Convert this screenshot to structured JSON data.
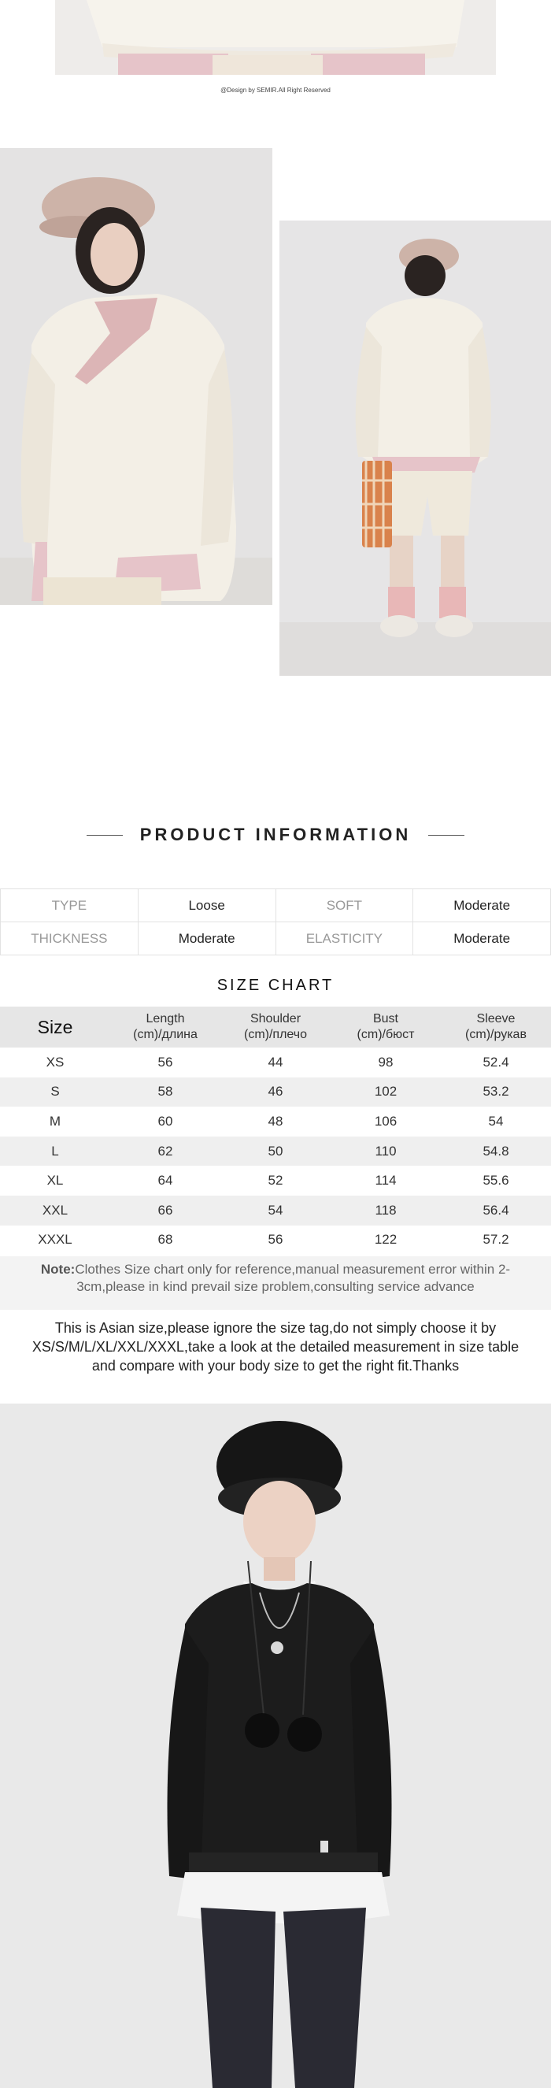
{
  "copyright": "@Design by SEMIR.All Right Reserved",
  "section_title": "PRODUCT INFORMATION",
  "product_info": {
    "rows": [
      {
        "label1": "TYPE",
        "value1": "Loose",
        "label2": "SOFT",
        "value2": "Moderate"
      },
      {
        "label1": "THICKNESS",
        "value1": "Moderate",
        "label2": "ELASTICITY",
        "value2": "Moderate"
      }
    ]
  },
  "size_chart": {
    "title": "SIZE CHART",
    "headers": {
      "size": "Size",
      "length_1": "Length",
      "length_2": "(cm)/длина",
      "shoulder_1": "Shoulder",
      "shoulder_2": "(cm)/плечо",
      "bust_1": "Bust",
      "bust_2": "(cm)/бюст",
      "sleeve_1": "Sleeve",
      "sleeve_2": "(cm)/рукав"
    },
    "rows": [
      {
        "size": "XS",
        "length": "56",
        "shoulder": "44",
        "bust": "98",
        "sleeve": "52.4"
      },
      {
        "size": "S",
        "length": "58",
        "shoulder": "46",
        "bust": "102",
        "sleeve": "53.2"
      },
      {
        "size": "M",
        "length": "60",
        "shoulder": "48",
        "bust": "106",
        "sleeve": "54"
      },
      {
        "size": "L",
        "length": "62",
        "shoulder": "50",
        "bust": "110",
        "sleeve": "54.8"
      },
      {
        "size": "XL",
        "length": "64",
        "shoulder": "52",
        "bust": "114",
        "sleeve": "55.6"
      },
      {
        "size": "XXL",
        "length": "66",
        "shoulder": "54",
        "bust": "118",
        "sleeve": "56.4"
      },
      {
        "size": "XXXL",
        "length": "68",
        "shoulder": "56",
        "bust": "122",
        "sleeve": "57.2"
      }
    ]
  },
  "note": {
    "prefix": "Note:",
    "text": "Clothes Size chart only for reference,manual measurement error within 2-3cm,please in kind prevail size problem,consulting service advance"
  },
  "notice": "This is Asian size,please ignore the size tag,do not simply choose it by XS/S/M/L/XL/XXL/XXXL,take a look at the detailed measurement in size table and compare with your body size to get the right fit.Thanks",
  "colors": {
    "cream_sweatshirt": "#f3efe6",
    "pink_accent": "#e7c9cc",
    "black_sweatshirt": "#1c1c1c",
    "table_header_bg": "#e6e6e6",
    "table_stripe_bg": "#efefef"
  }
}
